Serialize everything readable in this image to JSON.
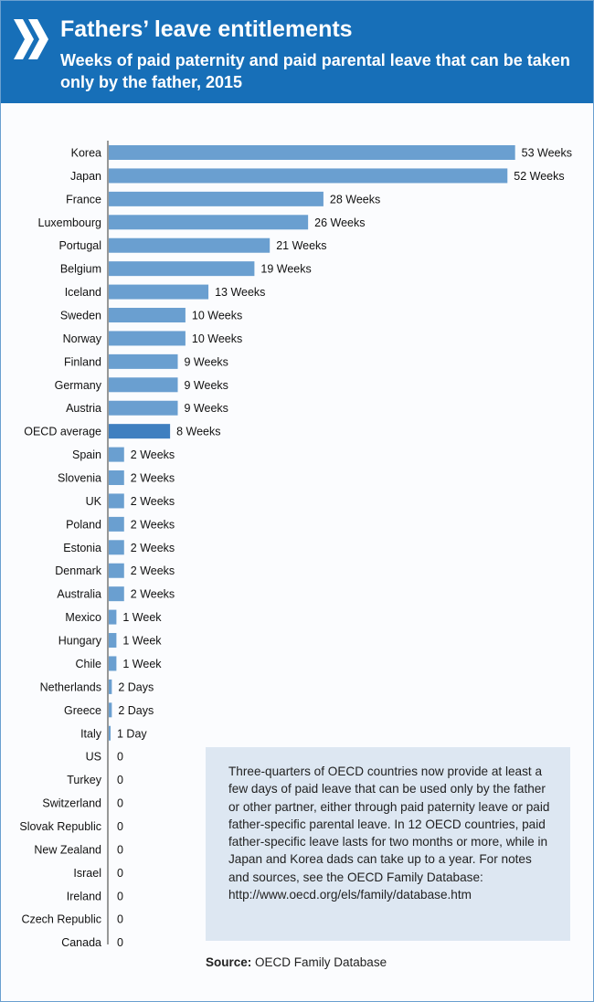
{
  "header": {
    "title": "Fathers’ leave entitlements",
    "subtitle": "Weeks of paid paternity and paid parental leave that can be taken only by the father, 2015"
  },
  "colors": {
    "accent": "#176fb8",
    "bar": "#6a9fd0",
    "note_bg": "#dde7f2"
  },
  "chart_data": {
    "type": "bar",
    "orientation": "horizontal",
    "title": "Fathers’ leave entitlements",
    "subtitle": "Weeks of paid paternity and paid parental leave that can be taken only by the father, 2015",
    "unit": "weeks",
    "grid": false,
    "categories": [
      "Korea",
      "Japan",
      "France",
      "Luxembourg",
      "Portugal",
      "Belgium",
      "Iceland",
      "Sweden",
      "Norway",
      "Finland",
      "Germany",
      "Austria",
      "OECD average",
      "Spain",
      "Slovenia",
      "UK",
      "Poland",
      "Estonia",
      "Denmark",
      "Australia",
      "Mexico",
      "Hungary",
      "Chile",
      "Netherlands",
      "Greece",
      "Italy",
      "US",
      "Turkey",
      "Switzerland",
      "Slovak Republic",
      "New Zealand",
      "Israel",
      "Ireland",
      "Czech Republic",
      "Canada"
    ],
    "values": [
      53,
      52,
      28,
      26,
      21,
      19,
      13,
      10,
      10,
      9,
      9,
      9,
      8,
      2,
      2,
      2,
      2,
      2,
      2,
      2,
      1,
      1,
      1,
      0.4,
      0.4,
      0.2,
      0,
      0,
      0,
      0,
      0,
      0,
      0,
      0,
      0
    ],
    "data_labels": [
      "53 Weeks",
      "52 Weeks",
      "28 Weeks",
      "26 Weeks",
      "21 Weeks",
      "19 Weeks",
      "13 Weeks",
      "10 Weeks",
      "10 Weeks",
      "9 Weeks",
      "9 Weeks",
      "9 Weeks",
      "8 Weeks",
      "2 Weeks",
      "2 Weeks",
      "2 Weeks",
      "2 Weeks",
      "2 Weeks",
      "2 Weeks",
      "2 Weeks",
      "1 Week",
      "1 Week",
      "1 Week",
      "2 Days",
      "2 Days",
      "1 Day",
      "0",
      "0",
      "0",
      "0",
      "0",
      "0",
      "0",
      "0",
      "0"
    ],
    "highlight": "OECD average"
  },
  "note": {
    "text": "Three-quarters of OECD countries now provide at least a few days of paid leave that can be used only by the father or other partner, either through paid paternity leave or paid father-specific parental leave. In 12 OECD countries, paid father-specific leave lasts for two months or more, while in Japan and Korea dads can take up to a year. For notes and sources, see the OECD Family Database: http://www.oecd.org/els/family/database.htm"
  },
  "source": {
    "label": "Source:",
    "text": "OECD Family Database"
  }
}
